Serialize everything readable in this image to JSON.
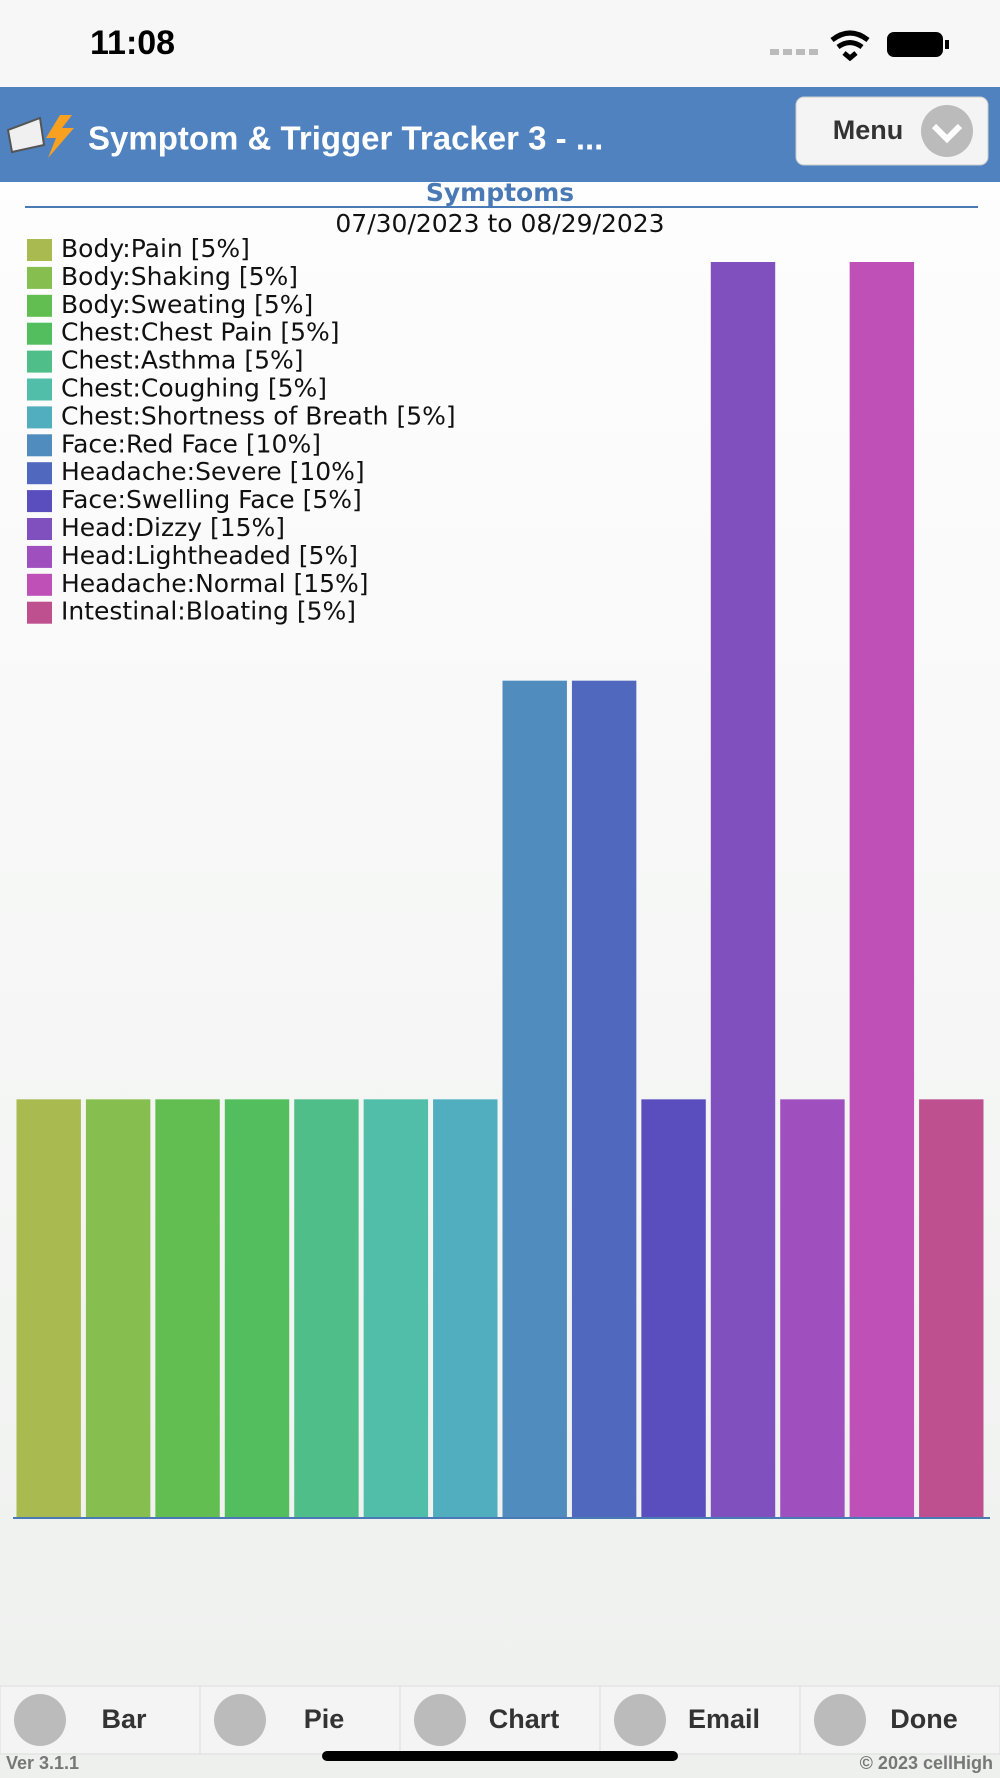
{
  "status": {
    "time": "11:08"
  },
  "header": {
    "title": "Symptom & Trigger Tracker 3 - ...",
    "menu": "Menu"
  },
  "chart_data": {
    "type": "bar",
    "title": "Symptoms",
    "subtitle": "07/30/2023 to 08/29/2023",
    "categories": [
      "Body:Pain [5%]",
      "Body:Shaking [5%]",
      "Body:Sweating [5%]",
      "Chest:Chest Pain [5%]",
      "Chest:Asthma [5%]",
      "Chest:Coughing [5%]",
      "Chest:Shortness of Breath [5%]",
      "Face:Red Face [10%]",
      "Headache:Severe [10%]",
      "Face:Swelling Face [5%]",
      "Head:Dizzy [15%]",
      "Head:Lightheaded [5%]",
      "Headache:Normal [15%]",
      "Intestinal:Bloating [5%]"
    ],
    "values": [
      5,
      5,
      5,
      5,
      5,
      5,
      5,
      10,
      10,
      5,
      15,
      5,
      15,
      5
    ],
    "colors": [
      "#a9bb50",
      "#86be50",
      "#62be50",
      "#52be5e",
      "#50be88",
      "#50bea8",
      "#50aebe",
      "#508cbe",
      "#5068be",
      "#5a4ebe",
      "#8050be",
      "#a050be",
      "#be50b8",
      "#be5090"
    ],
    "ylim": [
      0,
      15
    ],
    "legend": "top-left"
  },
  "tabs": [
    "Bar",
    "Pie",
    "Chart",
    "Email",
    "Done"
  ],
  "footer": {
    "version": "Ver 3.1.1",
    "copyright": "© 2023 cellHigh"
  }
}
